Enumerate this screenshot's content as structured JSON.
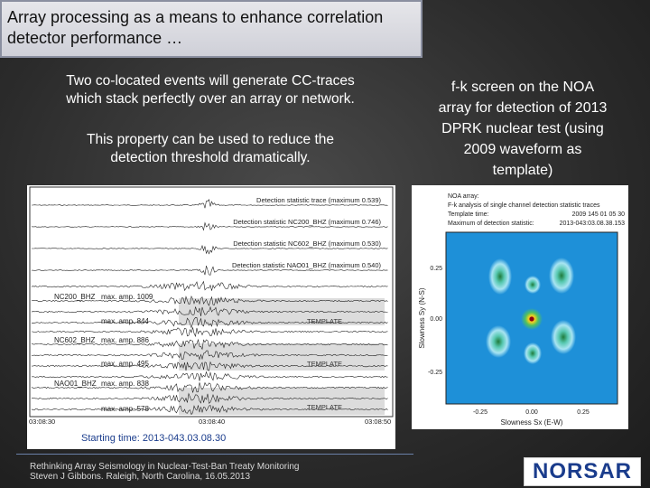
{
  "title": {
    "line1": "Array processing as a means to enhance correlation",
    "line2": "detector performance …"
  },
  "left_caption": {
    "line1": "Two co-located events will generate CC-traces",
    "line2": "which stack perfectly over an array or network.",
    "line3": "This property can be used to reduce the",
    "line4": "detection threshold dramatically."
  },
  "right_caption": {
    "line1": "f-k screen on the NOA",
    "line2": "array for detection of 2013",
    "line3": "DPRK nuclear test (using",
    "line4": "2009 waveform as",
    "line5": "template)"
  },
  "waveform_figure": {
    "det_labels": [
      "Detection statistic trace (maximum 0.539)",
      "Detection statistic NC200_BHZ (maximum 0.746)",
      "Detection statistic NC602_BHZ (maximum 0.530)",
      "Detection statistic NAO01_BHZ (maximum 0.540)"
    ],
    "stations": [
      {
        "name": "NC200_BHZ",
        "amp": "max. amp. 1009",
        "tmpl_amp": "max. amp. 844"
      },
      {
        "name": "NC602_BHZ",
        "amp": "max. amp. 886",
        "tmpl_amp": "max. amp. 495"
      },
      {
        "name": "NAO01_BHZ",
        "amp": "max. amp. 838",
        "tmpl_amp": "max. amp. 578"
      }
    ],
    "template_label": "TEMPLATE",
    "time_ticks": [
      "03:08:30",
      "03:08:40",
      "03:08:50"
    ],
    "starting_time": "Starting time: 2013-043.03.08.30"
  },
  "fk_figure": {
    "header": {
      "l1": "NOA array:",
      "l2": "F-k analysis of single channel detection statistic traces",
      "l3": "Template time:",
      "l3v": "2009 145 01 05 30",
      "l4": "Maximum of detection statistic:",
      "l4v": "2013-043:03.08.38.153"
    },
    "y_ticks": [
      "0.25",
      "0.00",
      "-0.25"
    ],
    "x_ticks": [
      "-0.25",
      "0.00",
      "0.25"
    ],
    "ylabel": "Slowness Sy (N-S)",
    "xlabel": "Slowness Sx (E-W)"
  },
  "footer": {
    "line1": "Rethinking Array Seismology in Nuclear-Test-Ban Treaty Monitoring",
    "line2": "Steven J Gibbons. Raleigh, North Carolina, 16.05.2013"
  },
  "logo_text": "NORSAR"
}
